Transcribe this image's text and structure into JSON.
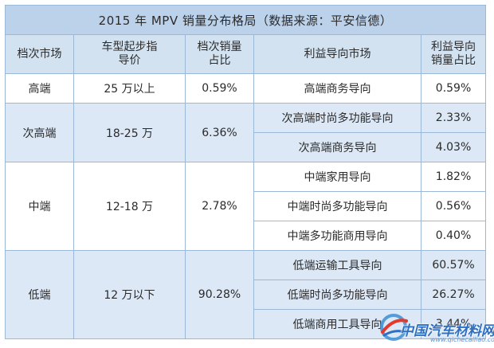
{
  "table": {
    "title": "2015 年 MPV 销量分布格局（数据来源：平安信德）",
    "headers": {
      "segment_line1": "档次市场",
      "price_line1": "车型起步指",
      "price_line2": "导价",
      "share_line1": "档次销量",
      "share_line2": "占比",
      "orientation_line1": "利益导向市场",
      "orient_share_line1": "利益导向",
      "orient_share_line2": "销量占比"
    },
    "groups": [
      {
        "segment": "高端",
        "price": "25 万以上",
        "share": "0.59%",
        "rows": [
          {
            "orientation": "高端商务导向",
            "share": "0.59%"
          }
        ]
      },
      {
        "segment": "次高端",
        "price": "18-25 万",
        "share": "6.36%",
        "rows": [
          {
            "orientation": "次高端时尚多功能导向",
            "share": "2.33%"
          },
          {
            "orientation": "次高端商务导向",
            "share": "4.03%"
          }
        ]
      },
      {
        "segment": "中端",
        "price": "12-18 万",
        "share": "2.78%",
        "rows": [
          {
            "orientation": "中端家用导向",
            "share": "1.82%"
          },
          {
            "orientation": "中端时尚多功能导向",
            "share": "0.56%"
          },
          {
            "orientation": "中端多功能商用导向",
            "share": "0.40%"
          }
        ]
      },
      {
        "segment": "低端",
        "price": "12 万以下",
        "share": "90.28%",
        "rows": [
          {
            "orientation": "低端运输工具导向",
            "share": "60.57%"
          },
          {
            "orientation": "低端时尚多功能导向",
            "share": "26.27%"
          },
          {
            "orientation": "低端商用工具导向",
            "share": "3.44%"
          }
        ]
      }
    ]
  },
  "watermark": {
    "brand": "中国汽车材料网",
    "url": "www.qichecailiao.com",
    "icon": "swoosh-logo-icon"
  },
  "colors": {
    "title_bg": "#bcd2ea",
    "header_bg": "#d3e2f1",
    "band_blue": "#dce8f5",
    "border": "#9bb8d6"
  }
}
